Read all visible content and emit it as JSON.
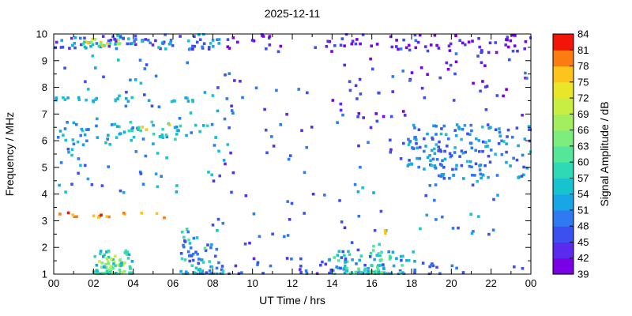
{
  "chart_data": {
    "type": "scatter",
    "title": "2025-12-11",
    "xlabel": "UT Time / hrs",
    "ylabel": "Frequency / MHz",
    "xlim": [
      0,
      24
    ],
    "ylim": [
      1,
      10
    ],
    "grid": false,
    "x_ticks": [
      "00",
      "02",
      "04",
      "06",
      "08",
      "10",
      "12",
      "14",
      "16",
      "18",
      "20",
      "22",
      "00"
    ],
    "x_tick_values": [
      0,
      2,
      4,
      6,
      8,
      10,
      12,
      14,
      16,
      18,
      20,
      22,
      24
    ],
    "y_ticks": [
      "1",
      "2",
      "3",
      "4",
      "5",
      "6",
      "7",
      "8",
      "9",
      "10"
    ],
    "y_tick_values": [
      1,
      2,
      3,
      4,
      5,
      6,
      7,
      8,
      9,
      10
    ],
    "marker_size_px": 3.6,
    "seed": 1337,
    "colorbar": {
      "label": "Signal Amplitude / dB",
      "min": 39,
      "max": 84,
      "ticks": [
        39,
        42,
        45,
        48,
        51,
        54,
        57,
        60,
        63,
        66,
        69,
        72,
        75,
        78,
        81,
        84
      ],
      "colors_bottom_to_top": [
        "#7a00e6",
        "#5a2bee",
        "#3c50f0",
        "#2f7af0",
        "#19a6e6",
        "#17c3cf",
        "#30d9b5",
        "#55e69a",
        "#7dee7d",
        "#a3ee5f",
        "#c8ee44",
        "#e9e629",
        "#fcc41c",
        "#fb7d12",
        "#f31507"
      ]
    },
    "clusters": [
      {
        "name": "top-band-left",
        "t": [
          0,
          8.5
        ],
        "f": [
          9.4,
          10.0
        ],
        "n": 90,
        "amp": [
          42,
          57
        ]
      },
      {
        "name": "top-band-left-strong",
        "t": [
          1.4,
          3.6
        ],
        "f": [
          9.5,
          9.8
        ],
        "n": 18,
        "amp": [
          57,
          80
        ]
      },
      {
        "name": "top-band-right",
        "t": [
          8.5,
          24
        ],
        "f": [
          9.3,
          10.0
        ],
        "n": 70,
        "amp": [
          39,
          48
        ]
      },
      {
        "name": "line-7p5-mhz",
        "t": [
          0,
          7.2
        ],
        "f": [
          7.45,
          7.62
        ],
        "n": 26,
        "amp": [
          51,
          57
        ]
      },
      {
        "name": "band-6p3-left",
        "t": [
          0,
          8
        ],
        "f": [
          6.0,
          6.7
        ],
        "n": 55,
        "amp": [
          48,
          60
        ]
      },
      {
        "name": "orange-points-6p5",
        "t": [
          4.4,
          6.0
        ],
        "f": [
          6.4,
          6.6
        ],
        "n": 3,
        "amp": [
          75,
          80
        ]
      },
      {
        "name": "left-scatter",
        "t": [
          0,
          9
        ],
        "f": [
          4.0,
          9.3
        ],
        "n": 90,
        "amp": [
          45,
          57
        ]
      },
      {
        "name": "line-3p2-orange",
        "t": [
          0,
          3.6
        ],
        "f": [
          3.12,
          3.3
        ],
        "n": 14,
        "amp": [
          75,
          82
        ]
      },
      {
        "name": "points-3p2-extra",
        "t": [
          4.2,
          6.6
        ],
        "f": [
          3.1,
          3.3
        ],
        "n": 3,
        "amp": [
          72,
          80
        ]
      },
      {
        "name": "bottom-left-dense",
        "t": [
          2.0,
          4.0
        ],
        "f": [
          1.0,
          1.9
        ],
        "n": 95,
        "amp": [
          51,
          72
        ],
        "fpow": 2.2
      },
      {
        "name": "bottom-dawn-dense",
        "t": [
          6.4,
          8.6
        ],
        "f": [
          1.0,
          2.7
        ],
        "n": 80,
        "amp": [
          45,
          63
        ],
        "fpow": 2.4
      },
      {
        "name": "bottom-mid-sparse",
        "t": [
          8.6,
          14
        ],
        "f": [
          1.0,
          1.6
        ],
        "n": 22,
        "amp": [
          42,
          51
        ],
        "fpow": 1.5
      },
      {
        "name": "mid-day-sparse",
        "t": [
          8,
          18
        ],
        "f": [
          1.8,
          9.2
        ],
        "n": 70,
        "amp": [
          42,
          51
        ]
      },
      {
        "name": "bottom-right-dense",
        "t": [
          13.8,
          18.2
        ],
        "f": [
          1.0,
          1.9
        ],
        "n": 110,
        "amp": [
          45,
          63
        ],
        "fpow": 2.2
      },
      {
        "name": "green-spike-16h",
        "t": [
          16.0,
          16.5
        ],
        "f": [
          1.0,
          2.3
        ],
        "n": 20,
        "amp": [
          54,
          66
        ],
        "fpow": 1.6
      },
      {
        "name": "evening-block",
        "t": [
          17.8,
          24
        ],
        "f": [
          4.9,
          6.6
        ],
        "n": 150,
        "amp": [
          45,
          56
        ]
      },
      {
        "name": "line-4p65-mhz",
        "t": [
          19,
          24
        ],
        "f": [
          4.58,
          4.75
        ],
        "n": 22,
        "amp": [
          47,
          54
        ]
      },
      {
        "name": "upper-right-sparse",
        "t": [
          14,
          24
        ],
        "f": [
          6.8,
          9.8
        ],
        "n": 70,
        "amp": [
          39,
          51
        ]
      },
      {
        "name": "mid-right-scatter",
        "t": [
          15,
          22.5
        ],
        "f": [
          2.4,
          4.5
        ],
        "n": 25,
        "amp": [
          45,
          57
        ]
      },
      {
        "name": "orange-16p5h",
        "t": [
          16.3,
          16.8
        ],
        "f": [
          2.5,
          2.7
        ],
        "n": 2,
        "amp": [
          76,
          80
        ]
      },
      {
        "name": "bottom-far-right",
        "t": [
          18,
          23.6
        ],
        "f": [
          1.0,
          1.5
        ],
        "n": 15,
        "amp": [
          45,
          51
        ],
        "fpow": 1.5
      }
    ]
  }
}
